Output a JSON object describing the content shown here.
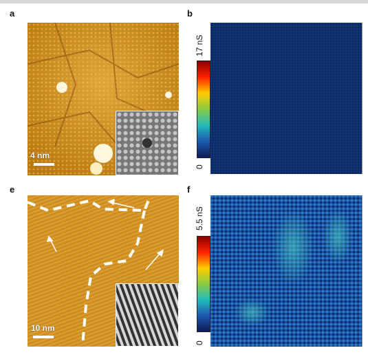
{
  "panels": {
    "a": {
      "label": "a",
      "scale": "4 nm"
    },
    "b": {
      "label": "b",
      "cmax": "17 nS",
      "cmin": "0"
    },
    "e": {
      "label": "e",
      "scale": "10 nm"
    },
    "f": {
      "label": "f",
      "cmax": "5.5 nS",
      "cmin": "0"
    }
  },
  "colors": {
    "afm_base": "#c98a1c",
    "afm_light": "#f2c45a",
    "afm_dark": "#7a4a06",
    "map_b": "#0e2f6b",
    "map_f_base": "#1d4fa0",
    "dashed_line": "#ffffff"
  }
}
